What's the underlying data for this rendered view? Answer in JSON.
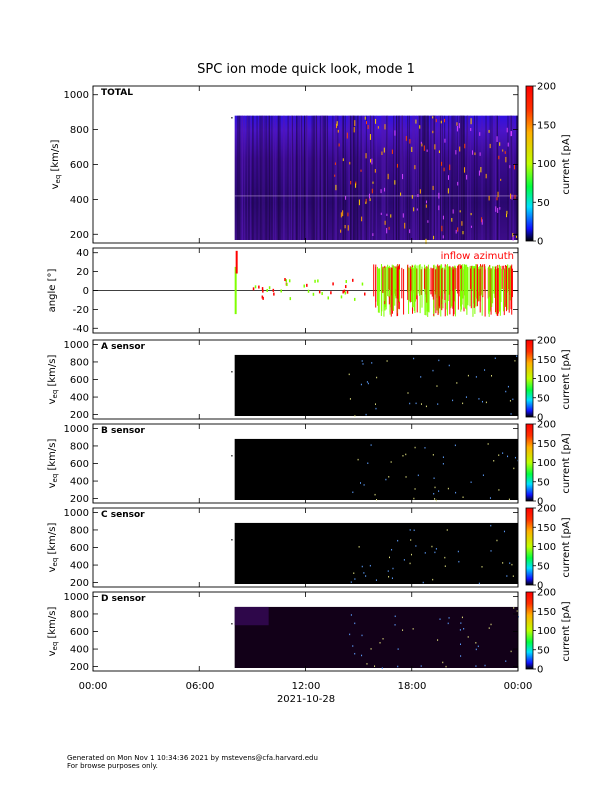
{
  "title": "SPC ion mode quick look, mode 1",
  "footer": {
    "line1": "Generated on Mon Nov  1 10:34:36 2021 by mstevens@cfa.harvard.edu",
    "line2": "For browse purposes only."
  },
  "colors": {
    "background": "#ffffff",
    "axis": "#000000",
    "spectrogram_total_low": "#3c0a8c",
    "spectrogram_sensor_bg": "#000000",
    "inflow_azimuth": "#ff0000",
    "elevation_series": "#80ff00"
  },
  "chart_data": [
    {
      "type": "heatmap",
      "panel_label": "TOTAL",
      "ylabel": "v_eq [km/s]",
      "ylim": [
        150,
        1050
      ],
      "yticks": [
        "200",
        "400",
        "600",
        "800",
        "1000"
      ],
      "data_time_range": [
        "08:00",
        "24:00"
      ],
      "data_velocity_range": [
        150,
        880
      ],
      "colorbar": {
        "label": "current [pA]",
        "range": [
          0,
          200
        ],
        "ticks": [
          "0",
          "50",
          "100",
          "150",
          "200"
        ],
        "scheme": "rainbow"
      }
    },
    {
      "type": "line",
      "ylabel": "angle [°]",
      "ylim": [
        -45,
        45
      ],
      "yticks": [
        "40",
        "20",
        "0",
        "-20",
        "-40"
      ],
      "annotation": "inflow azimuth",
      "zero_line": true,
      "series": [
        {
          "name": "inflow azimuth",
          "color": "#ff0000"
        },
        {
          "color": "#80ff00"
        }
      ]
    },
    {
      "type": "heatmap",
      "panel_label": "A sensor",
      "ylabel": "v_eq [km/s]",
      "ylim": [
        150,
        1050
      ],
      "yticks": [
        "200",
        "400",
        "600",
        "800",
        "1000"
      ],
      "data_time_range": [
        "08:00",
        "24:00"
      ],
      "colorbar": {
        "label": "current [pA]",
        "range": [
          0,
          200
        ],
        "ticks": [
          "0",
          "50",
          "100",
          "150",
          "200"
        ]
      }
    },
    {
      "type": "heatmap",
      "panel_label": "B sensor",
      "ylabel": "v_eq [km/s]",
      "ylim": [
        150,
        1050
      ],
      "yticks": [
        "200",
        "400",
        "600",
        "800",
        "1000"
      ],
      "data_time_range": [
        "08:00",
        "24:00"
      ],
      "colorbar": {
        "label": "current [pA]",
        "range": [
          0,
          200
        ],
        "ticks": [
          "0",
          "50",
          "100",
          "150",
          "200"
        ]
      }
    },
    {
      "type": "heatmap",
      "panel_label": "C sensor",
      "ylabel": "v_eq [km/s]",
      "ylim": [
        150,
        1050
      ],
      "yticks": [
        "200",
        "400",
        "600",
        "800",
        "1000"
      ],
      "data_time_range": [
        "08:00",
        "24:00"
      ],
      "colorbar": {
        "label": "current [pA]",
        "range": [
          0,
          200
        ],
        "ticks": [
          "0",
          "50",
          "100",
          "150",
          "200"
        ]
      }
    },
    {
      "type": "heatmap",
      "panel_label": "D sensor",
      "ylabel": "v_eq [km/s]",
      "ylim": [
        150,
        1050
      ],
      "yticks": [
        "200",
        "400",
        "600",
        "800",
        "1000"
      ],
      "data_time_range": [
        "08:00",
        "24:00"
      ],
      "colorbar": {
        "label": "current [pA]",
        "range": [
          0,
          200
        ],
        "ticks": [
          "0",
          "50",
          "100",
          "150",
          "200"
        ]
      }
    }
  ],
  "xaxis": {
    "tick_labels": [
      "00:00",
      "06:00",
      "12:00",
      "18:00",
      "00:00"
    ],
    "date_label": "2021-10-28"
  }
}
